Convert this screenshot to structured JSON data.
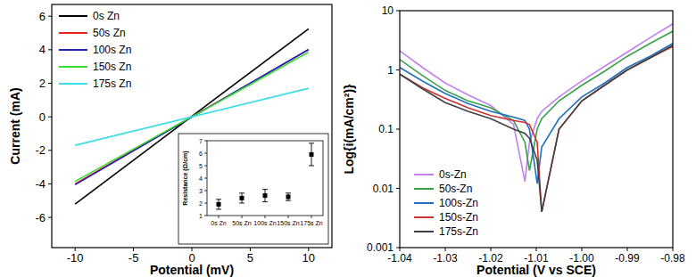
{
  "chart_data": [
    {
      "type": "line",
      "xlabel": "Potential (mV)",
      "ylabel": "Current (mA)",
      "x": [
        -10,
        10
      ],
      "series": [
        {
          "name": "0s Zn",
          "color": "#000000",
          "values": [
            -5.2,
            5.25
          ]
        },
        {
          "name": "50s Zn",
          "color": "#e8211b",
          "values": [
            -4.0,
            4.0
          ]
        },
        {
          "name": "100s Zn",
          "color": "#2222bb",
          "values": [
            -4.05,
            4.02
          ]
        },
        {
          "name": "150s Zn",
          "color": "#33dd33",
          "values": [
            -3.85,
            3.85
          ]
        },
        {
          "name": "175s Zn",
          "color": "#3ddde8",
          "values": [
            -1.7,
            1.7
          ]
        }
      ],
      "xlim": [
        -12,
        12
      ],
      "xticks": [
        -10,
        -5,
        0,
        5,
        10
      ],
      "ylim": [
        -7.8,
        6.7
      ],
      "yticks": [
        -6,
        -4,
        -2,
        0,
        2,
        4,
        6
      ],
      "grid": false,
      "legend": "upper left"
    },
    {
      "type": "scatter",
      "ylabel": "Resistance (Ω/cm)",
      "categories": [
        "0s Zn",
        "50s Zn",
        "100s Zn",
        "150s Zn",
        "175s Zn"
      ],
      "values": [
        1.9,
        2.4,
        2.6,
        2.5,
        5.9
      ],
      "errors": [
        0.4,
        0.4,
        0.5,
        0.3,
        0.9
      ],
      "color": "#000000",
      "marker": "square",
      "ylim": [
        1,
        7
      ],
      "yticks": [
        1,
        2,
        3,
        4,
        5,
        6,
        7
      ],
      "grid": false
    },
    {
      "type": "line",
      "xlabel": "Potential (V vs SCE)",
      "ylabel": "Log{i(mA/cm²)}",
      "x": [
        -1.04,
        -1.035,
        -1.03,
        -1.025,
        -1.02,
        -1.015,
        -1.0125,
        -1.0115,
        -1.0098,
        -1.0088,
        -1.005,
        -1.0,
        -0.995,
        -0.99,
        -0.985,
        -0.98
      ],
      "series": [
        {
          "name": "0s-Zn",
          "color": "#c080f0",
          "values": [
            2.1,
            1.1,
            0.6,
            0.38,
            0.25,
            0.12,
            0.013,
            0.06,
            0.15,
            0.2,
            0.35,
            0.65,
            1.15,
            2.0,
            3.5,
            6.0
          ]
        },
        {
          "name": "50s-Zn",
          "color": "#3aa04a",
          "values": [
            1.5,
            0.8,
            0.45,
            0.3,
            0.23,
            0.14,
            0.06,
            0.02,
            0.1,
            0.15,
            0.3,
            0.55,
            0.95,
            1.7,
            2.8,
            4.5
          ]
        },
        {
          "name": "100s-Zn",
          "color": "#1f6fbf",
          "values": [
            1.1,
            0.65,
            0.4,
            0.27,
            0.2,
            0.16,
            0.14,
            0.1,
            0.012,
            0.05,
            0.15,
            0.35,
            0.6,
            1.1,
            1.7,
            2.8
          ]
        },
        {
          "name": "150s-Zn",
          "color": "#d03030",
          "values": [
            0.85,
            0.5,
            0.33,
            0.23,
            0.17,
            0.14,
            0.13,
            0.12,
            0.06,
            0.004,
            0.1,
            0.3,
            0.55,
            1.0,
            1.6,
            2.5
          ]
        },
        {
          "name": "175s-Zn",
          "color": "#404040",
          "values": [
            0.85,
            0.48,
            0.28,
            0.2,
            0.15,
            0.1,
            0.085,
            0.07,
            0.03,
            0.004,
            0.1,
            0.3,
            0.55,
            1.0,
            1.6,
            2.6
          ]
        }
      ],
      "xlim": [
        -1.04,
        -0.98
      ],
      "xticks": [
        -1.04,
        -1.03,
        -1.02,
        -1.01,
        {
          "value": -1.0,
          "label": "-1.00"
        },
        -0.99,
        -0.98
      ],
      "ylim": [
        0.001,
        10
      ],
      "yticks": [
        0.001,
        0.01,
        0.1,
        1,
        10
      ],
      "log": "y",
      "grid": false,
      "legend": "lower left"
    }
  ]
}
